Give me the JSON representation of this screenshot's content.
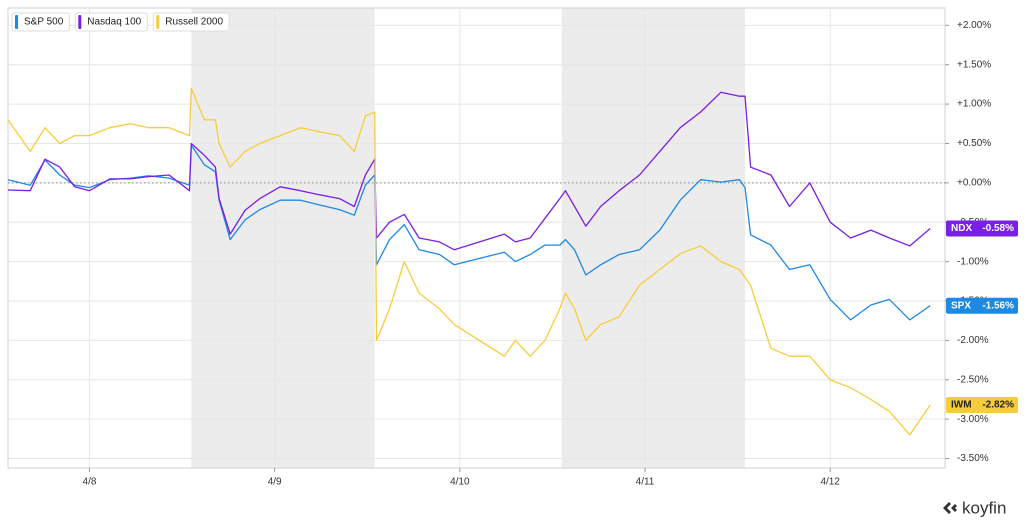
{
  "chart_data": {
    "type": "line",
    "x": [
      -0.44,
      -0.32,
      -0.24,
      -0.16,
      -0.08,
      0,
      0.11,
      0.22,
      0.32,
      0.43,
      0.54,
      0.55,
      0.62,
      0.68,
      0.7,
      0.76,
      0.84,
      0.92,
      1.03,
      1.14,
      1.24,
      1.35,
      1.43,
      1.49,
      1.54,
      1.55,
      1.62,
      1.7,
      1.78,
      1.89,
      1.97,
      2.24,
      2.3,
      2.38,
      2.46,
      2.54,
      2.57,
      2.62,
      2.68,
      2.76,
      2.86,
      2.97,
      3.08,
      3.19,
      3.3,
      3.41,
      3.51,
      3.54,
      3.57,
      3.68,
      3.78,
      3.89,
      4.0,
      4.11,
      4.22,
      4.32,
      4.43,
      4.54
    ],
    "series": [
      {
        "name": "S&P 500",
        "ticker": "SPX",
        "end_label": "-1.56%",
        "color": "#1e88e5",
        "values": [
          0.04,
          -0.03,
          0.29,
          0.1,
          -0.03,
          -0.06,
          0.04,
          0.06,
          0.09,
          0.06,
          -0.03,
          0.48,
          0.23,
          0.14,
          -0.22,
          -0.72,
          -0.47,
          -0.34,
          -0.22,
          -0.22,
          -0.28,
          -0.34,
          -0.41,
          -0.03,
          0.1,
          -1.04,
          -0.72,
          -0.53,
          -0.85,
          -0.91,
          -1.04,
          -0.88,
          -1.0,
          -0.91,
          -0.79,
          -0.79,
          -0.72,
          -0.85,
          -1.17,
          -1.04,
          -0.91,
          -0.85,
          -0.6,
          -0.22,
          0.04,
          0.01,
          0.04,
          -0.06,
          -0.66,
          -0.79,
          -1.1,
          -1.04,
          -1.48,
          -1.74,
          -1.55,
          -1.48,
          -1.74,
          -1.56
        ]
      },
      {
        "name": "Nasdaq 100",
        "ticker": "NDX",
        "end_label": "-0.58%",
        "color": "#7a1fe6",
        "values": [
          -0.09,
          -0.1,
          0.3,
          0.2,
          -0.05,
          -0.1,
          0.05,
          0.05,
          0.08,
          0.1,
          -0.1,
          0.5,
          0.35,
          0.2,
          -0.2,
          -0.65,
          -0.35,
          -0.2,
          -0.05,
          -0.1,
          -0.15,
          -0.2,
          -0.3,
          0.1,
          0.3,
          -0.7,
          -0.5,
          -0.4,
          -0.7,
          -0.75,
          -0.85,
          -0.65,
          -0.75,
          -0.7,
          -0.45,
          -0.2,
          -0.1,
          -0.3,
          -0.55,
          -0.3,
          -0.1,
          0.1,
          0.4,
          0.7,
          0.9,
          1.15,
          1.1,
          1.1,
          0.2,
          0.1,
          -0.3,
          0.0,
          -0.5,
          -0.7,
          -0.6,
          -0.7,
          -0.8,
          -0.58
        ]
      },
      {
        "name": "Russell 2000",
        "ticker": "IWM",
        "end_label": "-2.82%",
        "color": "#f7cc3c",
        "values": [
          0.8,
          0.4,
          0.7,
          0.5,
          0.6,
          0.6,
          0.7,
          0.75,
          0.7,
          0.7,
          0.6,
          1.2,
          0.8,
          0.8,
          0.5,
          0.2,
          0.4,
          0.5,
          0.6,
          0.7,
          0.65,
          0.6,
          0.4,
          0.85,
          0.9,
          -2.0,
          -1.6,
          -1.0,
          -1.4,
          -1.6,
          -1.8,
          -2.2,
          -2.0,
          -2.2,
          -2.0,
          -1.6,
          -1.4,
          -1.6,
          -2.0,
          -1.8,
          -1.7,
          -1.3,
          -1.1,
          -0.9,
          -0.8,
          -1.0,
          -1.1,
          -1.2,
          -1.3,
          -2.1,
          -2.2,
          -2.2,
          -2.5,
          -2.6,
          -2.75,
          -2.9,
          -3.2,
          -2.82
        ]
      }
    ],
    "xlim": [
      -0.44,
      4.62
    ],
    "xticks": [
      {
        "value": 0,
        "label": "4/8"
      },
      {
        "value": 1,
        "label": "4/9"
      },
      {
        "value": 2,
        "label": "4/10"
      },
      {
        "value": 3,
        "label": "4/11"
      },
      {
        "value": 4,
        "label": "4/12"
      }
    ],
    "ylim": [
      -3.62,
      2.22
    ],
    "yticks": [
      {
        "value": 2,
        "label": "+2.00%"
      },
      {
        "value": 1.5,
        "label": "+1.50%"
      },
      {
        "value": 1,
        "label": "+1.00%"
      },
      {
        "value": 0.5,
        "label": "+0.50%"
      },
      {
        "value": 0,
        "label": "+0.00%"
      },
      {
        "value": -0.5,
        "label": "-0.50%"
      },
      {
        "value": -1,
        "label": "-1.00%"
      },
      {
        "value": -1.5,
        "label": "-1.50%"
      },
      {
        "value": -2,
        "label": "-2.00%"
      },
      {
        "value": -2.5,
        "label": "-2.50%"
      },
      {
        "value": -3,
        "label": "-3.00%"
      },
      {
        "value": -3.5,
        "label": "-3.50%"
      }
    ],
    "shaded_ranges": [
      [
        0.55,
        1.54
      ],
      [
        2.55,
        3.54
      ]
    ],
    "grid": true,
    "zero_line": true,
    "legend": "top-left",
    "brand": "koyfin"
  }
}
